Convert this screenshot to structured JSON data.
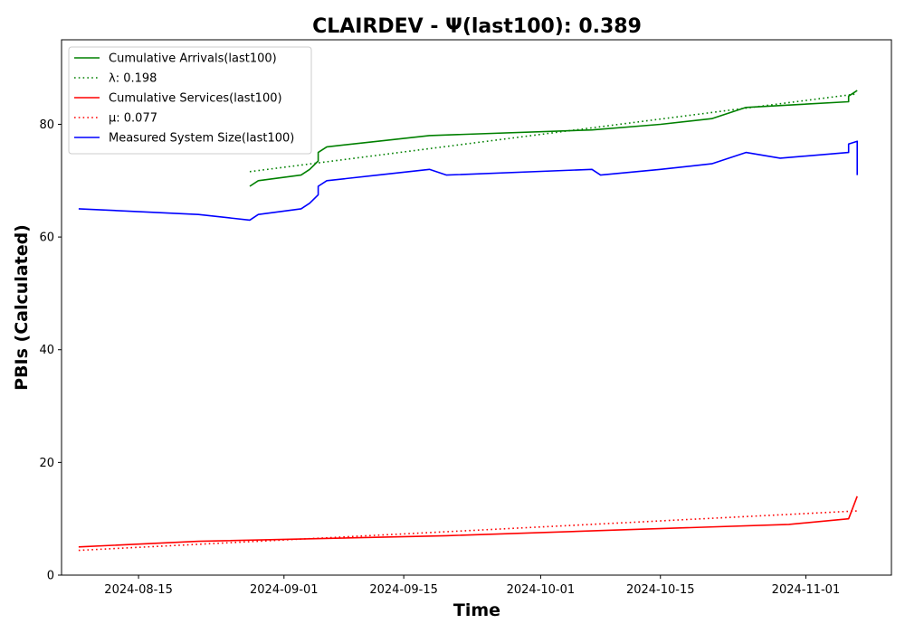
{
  "chart_data": {
    "type": "line",
    "title": "CLAIRDEV -  Ψ(last100): 0.389",
    "xlabel": "Time",
    "ylabel": "PBIs (Calculated)",
    "x_type": "date",
    "xlim": [
      "2024-08-06",
      "2024-11-11"
    ],
    "ylim": [
      0,
      95
    ],
    "x_ticks": [
      "2024-08-15",
      "2024-09-01",
      "2024-09-15",
      "2024-10-01",
      "2024-10-15",
      "2024-11-01"
    ],
    "y_ticks": [
      0,
      20,
      40,
      60,
      80
    ],
    "grid": false,
    "legend": {
      "position": "top-left"
    },
    "series": [
      {
        "name": "Cumulative Arrivals(last100)",
        "color": "#008000",
        "style": "solid",
        "points": [
          [
            "2024-08-28",
            69
          ],
          [
            "2024-08-29",
            70
          ],
          [
            "2024-09-03",
            71
          ],
          [
            "2024-09-04",
            72
          ],
          [
            "2024-09-05",
            73.5
          ],
          [
            "2024-09-05",
            75
          ],
          [
            "2024-09-06",
            76
          ],
          [
            "2024-09-12",
            77
          ],
          [
            "2024-09-18",
            78
          ],
          [
            "2024-10-07",
            79
          ],
          [
            "2024-10-15",
            80
          ],
          [
            "2024-10-21",
            81
          ],
          [
            "2024-10-23",
            82
          ],
          [
            "2024-10-25",
            83
          ],
          [
            "2024-11-06",
            84
          ],
          [
            "2024-11-06",
            85
          ],
          [
            "2024-11-07",
            86
          ]
        ]
      },
      {
        "name": "λ: 0.198",
        "color": "#008000",
        "style": "dotted",
        "points": [
          [
            "2024-08-28",
            71.6
          ],
          [
            "2024-11-07",
            85.4
          ]
        ]
      },
      {
        "name": "Cumulative Services(last100)",
        "color": "#ff0000",
        "style": "solid",
        "points": [
          [
            "2024-08-08",
            5
          ],
          [
            "2024-08-22",
            6
          ],
          [
            "2024-09-20",
            7
          ],
          [
            "2024-10-10",
            8
          ],
          [
            "2024-10-30",
            9
          ],
          [
            "2024-11-06",
            10
          ],
          [
            "2024-11-07",
            14
          ]
        ]
      },
      {
        "name": "μ: 0.077",
        "color": "#ff0000",
        "style": "dotted",
        "points": [
          [
            "2024-08-08",
            4.4
          ],
          [
            "2024-11-07",
            11.4
          ]
        ]
      },
      {
        "name": "Measured System Size(last100)",
        "color": "#0000ff",
        "style": "solid",
        "points": [
          [
            "2024-08-08",
            65
          ],
          [
            "2024-08-22",
            64
          ],
          [
            "2024-08-28",
            63
          ],
          [
            "2024-08-29",
            64
          ],
          [
            "2024-09-03",
            65
          ],
          [
            "2024-09-04",
            66
          ],
          [
            "2024-09-05",
            67.5
          ],
          [
            "2024-09-05",
            69
          ],
          [
            "2024-09-06",
            70
          ],
          [
            "2024-09-12",
            71
          ],
          [
            "2024-09-18",
            72
          ],
          [
            "2024-09-20",
            71
          ],
          [
            "2024-10-07",
            72
          ],
          [
            "2024-10-08",
            71
          ],
          [
            "2024-10-15",
            72
          ],
          [
            "2024-10-21",
            73
          ],
          [
            "2024-10-23",
            74
          ],
          [
            "2024-10-25",
            75
          ],
          [
            "2024-10-29",
            74
          ],
          [
            "2024-11-06",
            75
          ],
          [
            "2024-11-06",
            76.5
          ],
          [
            "2024-11-07",
            77
          ],
          [
            "2024-11-07",
            71
          ]
        ]
      }
    ]
  }
}
